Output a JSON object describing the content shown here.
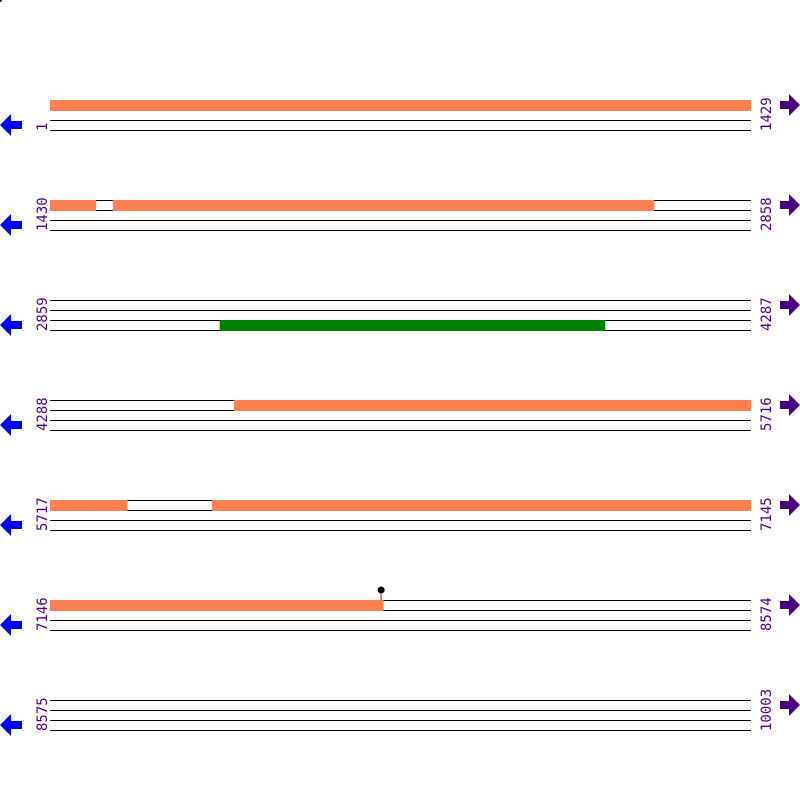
{
  "map": {
    "bp_per_row": 1429,
    "rows": [
      {
        "start_label": "1",
        "end_label": "1429",
        "start": 1,
        "end": 1429
      },
      {
        "start_label": "1430",
        "end_label": "2858",
        "start": 1430,
        "end": 2858
      },
      {
        "start_label": "2859",
        "end_label": "4287",
        "start": 2859,
        "end": 4287
      },
      {
        "start_label": "4288",
        "end_label": "5716",
        "start": 4288,
        "end": 5716
      },
      {
        "start_label": "5717",
        "end_label": "7145",
        "start": 5717,
        "end": 7145
      },
      {
        "start_label": "7146",
        "end_label": "8574",
        "start": 7146,
        "end": 8574
      },
      {
        "start_label": "8575",
        "end_label": "10003",
        "start": 8575,
        "end": 10003
      }
    ],
    "features": [
      {
        "start": 1,
        "end": 1523,
        "lane": 1,
        "color": "#ff7f50"
      },
      {
        "start": 1558,
        "end": 2661,
        "lane": 1,
        "color": "#ff7f50"
      },
      {
        "start": 3205,
        "end": 3990,
        "lane": 3,
        "color": "#008000"
      },
      {
        "start": 4663,
        "end": 5874,
        "lane": 1,
        "color": "#ff7f50"
      },
      {
        "start": 6047,
        "end": 7825,
        "lane": 1,
        "color": "#ff7f50"
      }
    ],
    "markers": [
      {
        "position": 7821,
        "stem_color": "#cc0000",
        "head_color": "#000000"
      }
    ],
    "colors": {
      "label": "#4b0082",
      "left_arrow": "#0000ff",
      "right_arrow": "#4b0082",
      "line": "#000000"
    },
    "icons": {
      "left": "arrow-left-icon",
      "right": "arrow-right-icon"
    }
  }
}
